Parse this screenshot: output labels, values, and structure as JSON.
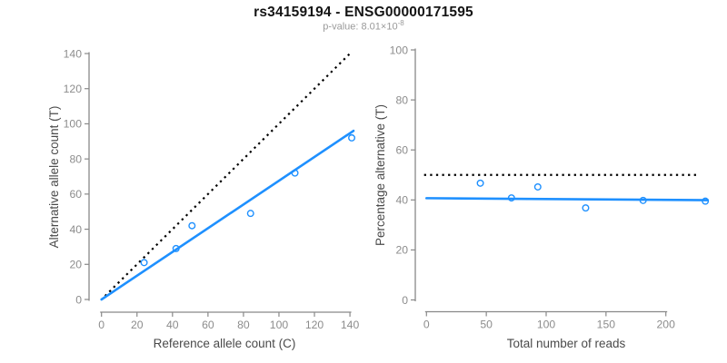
{
  "header": {
    "title": "rs34159194 - ENSG00000171595",
    "subtitle_base": "p-value: 8.01×10",
    "subtitle_exponent": "-8"
  },
  "colors": {
    "accent_blue": "#1E90FF",
    "dotted_black": "#000000",
    "axis_gray": "#898989",
    "tick_text_gray": "#8c8c8c",
    "axis_label_text": "#4a4a4a",
    "subtitle_gray": "#9a9a9a",
    "background": "#ffffff"
  },
  "chart_data": [
    {
      "id": "allele-counts-scatter",
      "type": "scatter",
      "xlabel": "Reference allele count (C)",
      "ylabel": "Alternative allele count (T)",
      "xlim": [
        0,
        145
      ],
      "ylim": [
        0,
        145
      ],
      "xticks": [
        0,
        20,
        40,
        60,
        80,
        100,
        120,
        140
      ],
      "yticks": [
        0,
        20,
        40,
        60,
        80,
        100,
        120,
        140
      ],
      "grid": false,
      "legend": null,
      "points": [
        [
          24,
          21
        ],
        [
          42,
          29
        ],
        [
          51,
          42
        ],
        [
          84,
          49
        ],
        [
          109,
          72
        ],
        [
          141,
          92
        ]
      ],
      "lines": [
        {
          "name": "identity-line",
          "style": "dotted",
          "color": "#000000",
          "x1": 2,
          "y1": 2,
          "x2": 141,
          "y2": 141
        },
        {
          "name": "fit-line",
          "style": "solid",
          "color": "#1E90FF",
          "x1": 0,
          "y1": 0,
          "x2": 142,
          "y2": 96
        }
      ]
    },
    {
      "id": "percentage-vs-reads-scatter",
      "type": "scatter",
      "xlabel": "Total number of reads",
      "ylabel": "Percentage alternative (T)",
      "xlim": [
        0,
        243
      ],
      "ylim": [
        0,
        104
      ],
      "xticks": [
        0,
        50,
        100,
        150,
        200
      ],
      "yticks": [
        0,
        20,
        40,
        60,
        80,
        100
      ],
      "grid": false,
      "legend": null,
      "points": [
        [
          45,
          46.7
        ],
        [
          71,
          40.8
        ],
        [
          93,
          45.2
        ],
        [
          133,
          36.8
        ],
        [
          181,
          39.8
        ],
        [
          233,
          39.5
        ]
      ],
      "lines": [
        {
          "name": "reference-line-50pct",
          "style": "dotted",
          "color": "#000000",
          "x1": -2,
          "y1": 50,
          "x2": 228,
          "y2": 50
        },
        {
          "name": "fit-line",
          "style": "solid",
          "color": "#1E90FF",
          "x1": 0,
          "y1": 40.7,
          "x2": 235,
          "y2": 39.9
        }
      ]
    }
  ]
}
